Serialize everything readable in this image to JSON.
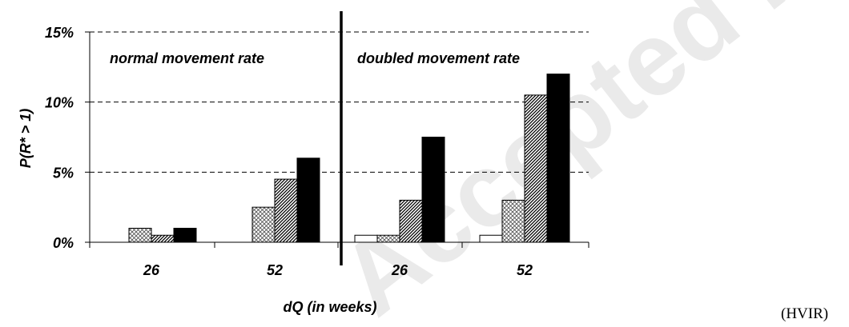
{
  "chart_data": {
    "type": "bar",
    "xlabel": "dQ (in weeks)",
    "ylabel": "P(R* > 1)",
    "ylim": [
      0,
      15
    ],
    "yticks": [
      "0%",
      "5%",
      "10%",
      "15%"
    ],
    "ytick_values": [
      0,
      5,
      10,
      15
    ],
    "grid": "horizontal dashed",
    "panels": [
      {
        "label": "normal movement rate",
        "categories": [
          "26",
          "52"
        ],
        "series_values": [
          [
            0,
            0
          ],
          [
            1,
            2.5
          ],
          [
            0.5,
            4.5
          ],
          [
            1,
            6
          ]
        ]
      },
      {
        "label": "doubled movement rate",
        "categories": [
          "26",
          "52"
        ],
        "series_values": [
          [
            0.5,
            0.5
          ],
          [
            0.5,
            3
          ],
          [
            3,
            10.5
          ],
          [
            7.5,
            12
          ]
        ]
      }
    ],
    "series_fills": [
      "white",
      "crosshatch",
      "diagonal-hatch",
      "black"
    ]
  },
  "side_tag": "(HVIR)",
  "watermark_text": "Accepted manuscript"
}
